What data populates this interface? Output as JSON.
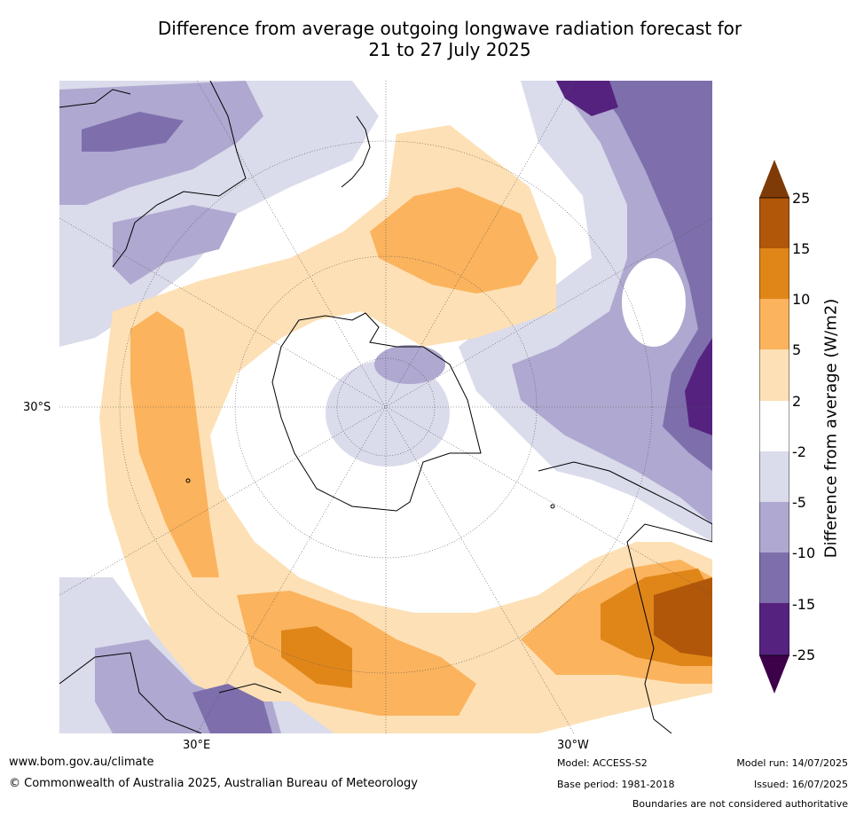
{
  "title_line1": "Difference from average outgoing longwave radiation forecast for",
  "title_line2": "21 to 27 July 2025",
  "map": {
    "projection": "south polar stereographic",
    "graticule_labels": {
      "lat": "30°S",
      "lon_left": "30°E",
      "lon_right": "30°W"
    },
    "colors": {
      "neg25": "#3d0149",
      "neg15_25": "#55237f",
      "neg10_15": "#7e6fac",
      "neg5_10": "#afa8d0",
      "neg2_5": "#dadbeb",
      "zero": "#ffffff",
      "pos2_5": "#fde0b5",
      "pos5_10": "#fbb35d",
      "pos10_15": "#e08619",
      "pos15_25": "#b05709",
      "pos25": "#7f3b07",
      "coast": "#000000",
      "grid": "#555555"
    }
  },
  "colorbar": {
    "label": "Difference from average (W/m2)",
    "ticks": [
      "25",
      "15",
      "10",
      "5",
      "2",
      "-2",
      "-5",
      "-10",
      "-15",
      "-25"
    ]
  },
  "footer": {
    "url": "www.bom.gov.au/climate",
    "copyright": "© Commonwealth of Australia 2025, Australian Bureau of Meteorology",
    "model": "Model: ACCESS-S2",
    "base_period": "Base period: 1981-2018",
    "model_run": "Model run: 14/07/2025",
    "issued": "Issued: 16/07/2025",
    "disclaimer": "Boundaries are not considered authoritative"
  }
}
